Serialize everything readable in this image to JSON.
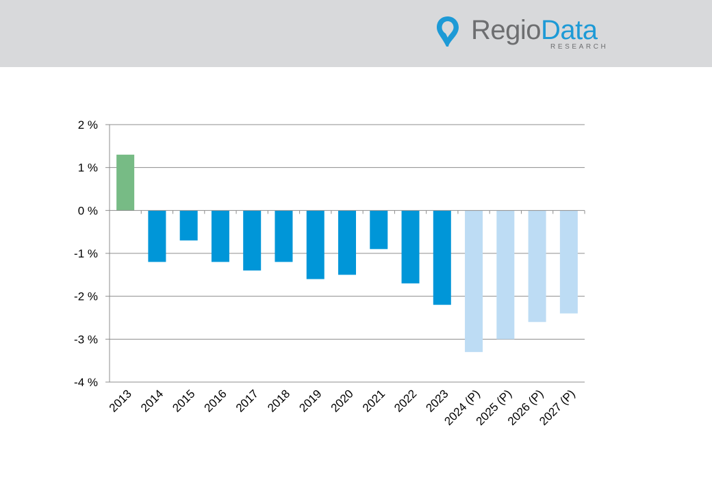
{
  "logo": {
    "name_part1": "Regio",
    "name_part2": "Data",
    "subtitle": "RESEARCH",
    "icon": "map-pin-icon",
    "colors": {
      "grey": "#6d6e70",
      "blue": "#1d9ad6"
    }
  },
  "chart_data": {
    "type": "bar",
    "title": "",
    "xlabel": "",
    "ylabel": "",
    "categories": [
      "2013",
      "2014",
      "2015",
      "2016",
      "2017",
      "2018",
      "2019",
      "2020",
      "2021",
      "2022",
      "2023",
      "2024 (P)",
      "2025 (P)",
      "2026 (P)",
      "2027 (P)"
    ],
    "values": [
      1.3,
      -1.2,
      -0.7,
      -1.2,
      -1.4,
      -1.2,
      -1.6,
      -1.5,
      -0.9,
      -1.7,
      -2.2,
      -3.3,
      -3.0,
      -2.6,
      -2.4
    ],
    "bar_colors": [
      "#77bb85",
      "#0096d8",
      "#0096d8",
      "#0096d8",
      "#0096d8",
      "#0096d8",
      "#0096d8",
      "#0096d8",
      "#0096d8",
      "#0096d8",
      "#0096d8",
      "#bddcf4",
      "#bddcf4",
      "#bddcf4",
      "#bddcf4"
    ],
    "ylim": [
      -4,
      2
    ],
    "yticks": [
      2,
      1,
      0,
      -1,
      -2,
      -3,
      -4
    ],
    "ytick_labels": [
      "2 %",
      "1 %",
      "0 %",
      "-1 %",
      "-2 %",
      "-3 %",
      "-4 %"
    ],
    "grid": true,
    "legend": "none"
  }
}
